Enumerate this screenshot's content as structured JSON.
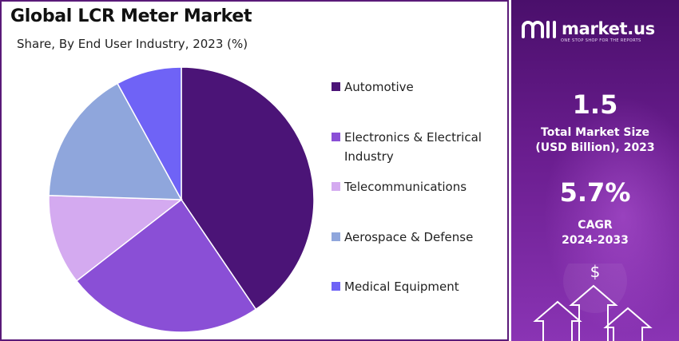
{
  "chart": {
    "title": "Global LCR Meter Market",
    "subtitle": "Share, By End User Industry, 2023 (%)"
  },
  "chart_data": {
    "type": "pie",
    "title": "Global LCR Meter Market",
    "subtitle": "Share, By End User Industry, 2023 (%)",
    "slices": [
      {
        "label": "Automotive",
        "value": 40.5,
        "color": "#4b1477"
      },
      {
        "label": "Electronics & Electrical Industry",
        "value": 24.0,
        "color": "#8a4fd6"
      },
      {
        "label": "Telecommunications",
        "value": 11.0,
        "color": "#d4aaf0"
      },
      {
        "label": "Aerospace & Defense",
        "value": 16.5,
        "color": "#8fa6dc"
      },
      {
        "label": "Medical Equipment",
        "value": 8.0,
        "color": "#6f63f6"
      }
    ],
    "legend_position": "right"
  },
  "legend": [
    {
      "label": "Automotive",
      "color": "#4b1477"
    },
    {
      "label": "Electronics & Electrical Industry",
      "color": "#8a4fd6"
    },
    {
      "label": "Telecommunications",
      "color": "#d4aaf0"
    },
    {
      "label": "Aerospace & Defense",
      "color": "#8fa6dc"
    },
    {
      "label": "Medical Equipment",
      "color": "#6f63f6"
    }
  ],
  "brand": {
    "name": "market.us",
    "tagline": "ONE STOP SHOP FOR THE REPORTS",
    "logo_icon": "market-us-logo-icon"
  },
  "stats": {
    "market_size_value": "1.5",
    "market_size_label_line1": "Total Market Size",
    "market_size_label_line2": "(USD Billion), 2023",
    "cagr_value": "5.7%",
    "cagr_label_line1": "CAGR",
    "cagr_label_line2": "2024-2033"
  },
  "icons": {
    "currency": "$"
  },
  "colors": {
    "panel_gradient_top": "#4a0f6b",
    "panel_gradient_bottom": "#8a34b4",
    "border": "#5a1a78"
  }
}
